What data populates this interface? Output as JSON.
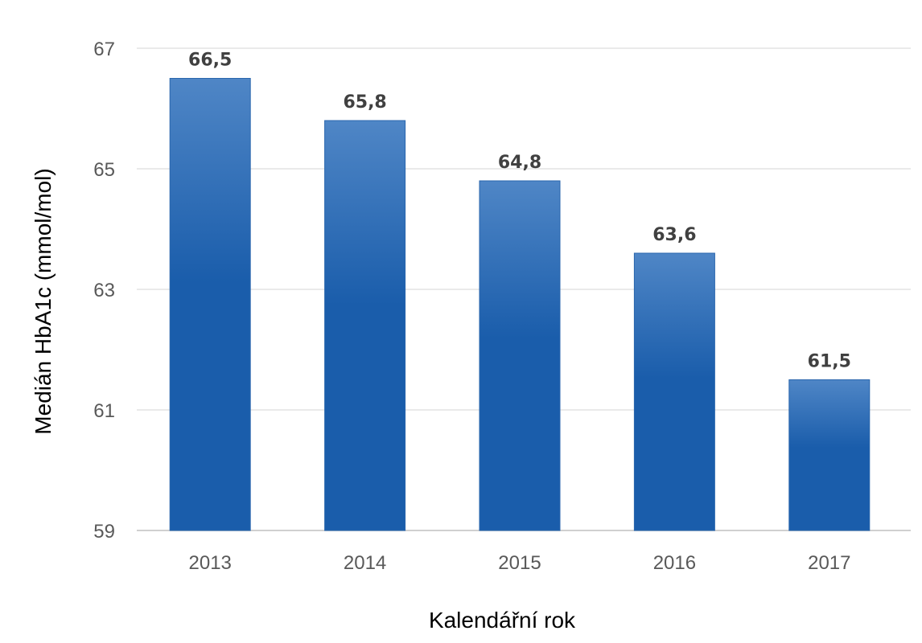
{
  "chart_data": {
    "type": "bar",
    "title": "",
    "xlabel": "Kalendářní rok",
    "ylabel": "Medián HbA1c (mmol/mol)",
    "categories": [
      "2013",
      "2014",
      "2015",
      "2016",
      "2017"
    ],
    "values": [
      66.5,
      65.8,
      64.8,
      63.6,
      61.5
    ],
    "value_labels": [
      "66,5",
      "65,8",
      "64,8",
      "63,6",
      "61,5"
    ],
    "ylim": [
      59,
      67
    ],
    "yticks": [
      59,
      61,
      63,
      65,
      67
    ],
    "grid": true,
    "legend": "none",
    "colors": {
      "bar_top": "#4f86c6",
      "bar_bottom": "#1a5dab"
    }
  }
}
